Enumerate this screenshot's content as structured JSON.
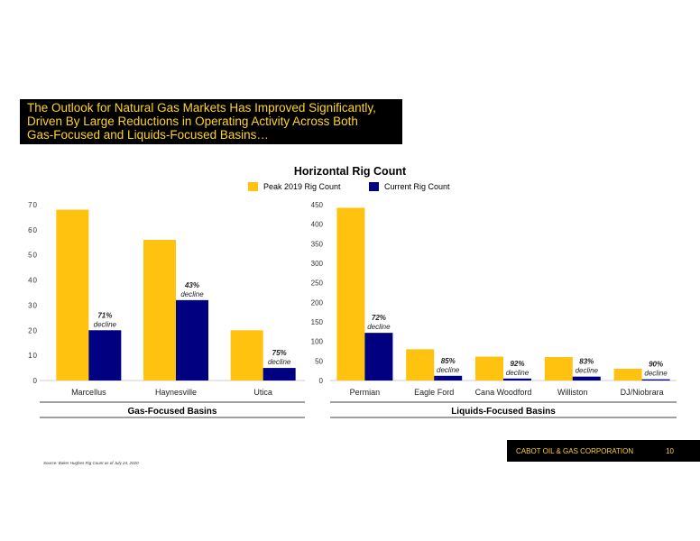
{
  "slide": {
    "title_lines": [
      "The Outlook for Natural Gas Markets Has Improved Significantly,",
      "Driven By Large Reductions in Operating Activity Across Both",
      "Gas-Focused and Liquids-Focused Basins…"
    ],
    "source": "Source: Baker Hughes Rig Count as of July 24, 2020",
    "company": "CABOT OIL & GAS CORPORATION",
    "page_number": "10"
  },
  "colors": {
    "peak": "#FFC20E",
    "current": "#000080",
    "title_text": "#FFD51E"
  },
  "chart_title": "Horizontal Rig Count",
  "legend": [
    {
      "label": "Peak 2019 Rig Count",
      "color": "#FFC20E"
    },
    {
      "label": "Current Rig Count",
      "color": "#000080"
    }
  ],
  "chart_data": [
    {
      "type": "bar",
      "title": "Horizontal Rig Count",
      "xlabel": "Gas-Focused Basins",
      "ylabel": "",
      "ylim": [
        0,
        70
      ],
      "yticks": [
        0,
        10,
        20,
        30,
        40,
        50,
        60,
        70
      ],
      "categories": [
        "Marcellus",
        "Haynesville",
        "Utica"
      ],
      "series": [
        {
          "name": "Peak 2019 Rig Count",
          "values": [
            68,
            56,
            20
          ]
        },
        {
          "name": "Current Rig Count",
          "values": [
            20,
            32,
            5
          ]
        }
      ],
      "annotations": [
        {
          "category": "Marcellus",
          "lines": [
            "71%",
            "decline"
          ]
        },
        {
          "category": "Haynesville",
          "lines": [
            "43%",
            "decline"
          ]
        },
        {
          "category": "Utica",
          "lines": [
            "75%",
            "decline"
          ]
        }
      ]
    },
    {
      "type": "bar",
      "title": "Horizontal Rig Count",
      "xlabel": "Liquids-Focused Basins",
      "ylabel": "",
      "ylim": [
        0,
        450
      ],
      "yticks": [
        0,
        50,
        100,
        150,
        200,
        250,
        300,
        350,
        400,
        450
      ],
      "categories": [
        "Permian",
        "Eagle Ford",
        "Cana Woodford",
        "Williston",
        "DJ/Niobrara"
      ],
      "series": [
        {
          "name": "Peak 2019 Rig Count",
          "values": [
            442,
            80,
            61,
            60,
            30
          ]
        },
        {
          "name": "Current Rig Count",
          "values": [
            122,
            12,
            5,
            10,
            3
          ]
        }
      ],
      "annotations": [
        {
          "category": "Permian",
          "lines": [
            "72%",
            "decline"
          ]
        },
        {
          "category": "Eagle Ford",
          "lines": [
            "85%",
            "decline"
          ]
        },
        {
          "category": "Cana Woodford",
          "lines": [
            "92%",
            "decline"
          ]
        },
        {
          "category": "Williston",
          "lines": [
            "83%",
            "decline"
          ]
        },
        {
          "category": "DJ/Niobrara",
          "lines": [
            "90%",
            "decline"
          ]
        }
      ]
    }
  ]
}
